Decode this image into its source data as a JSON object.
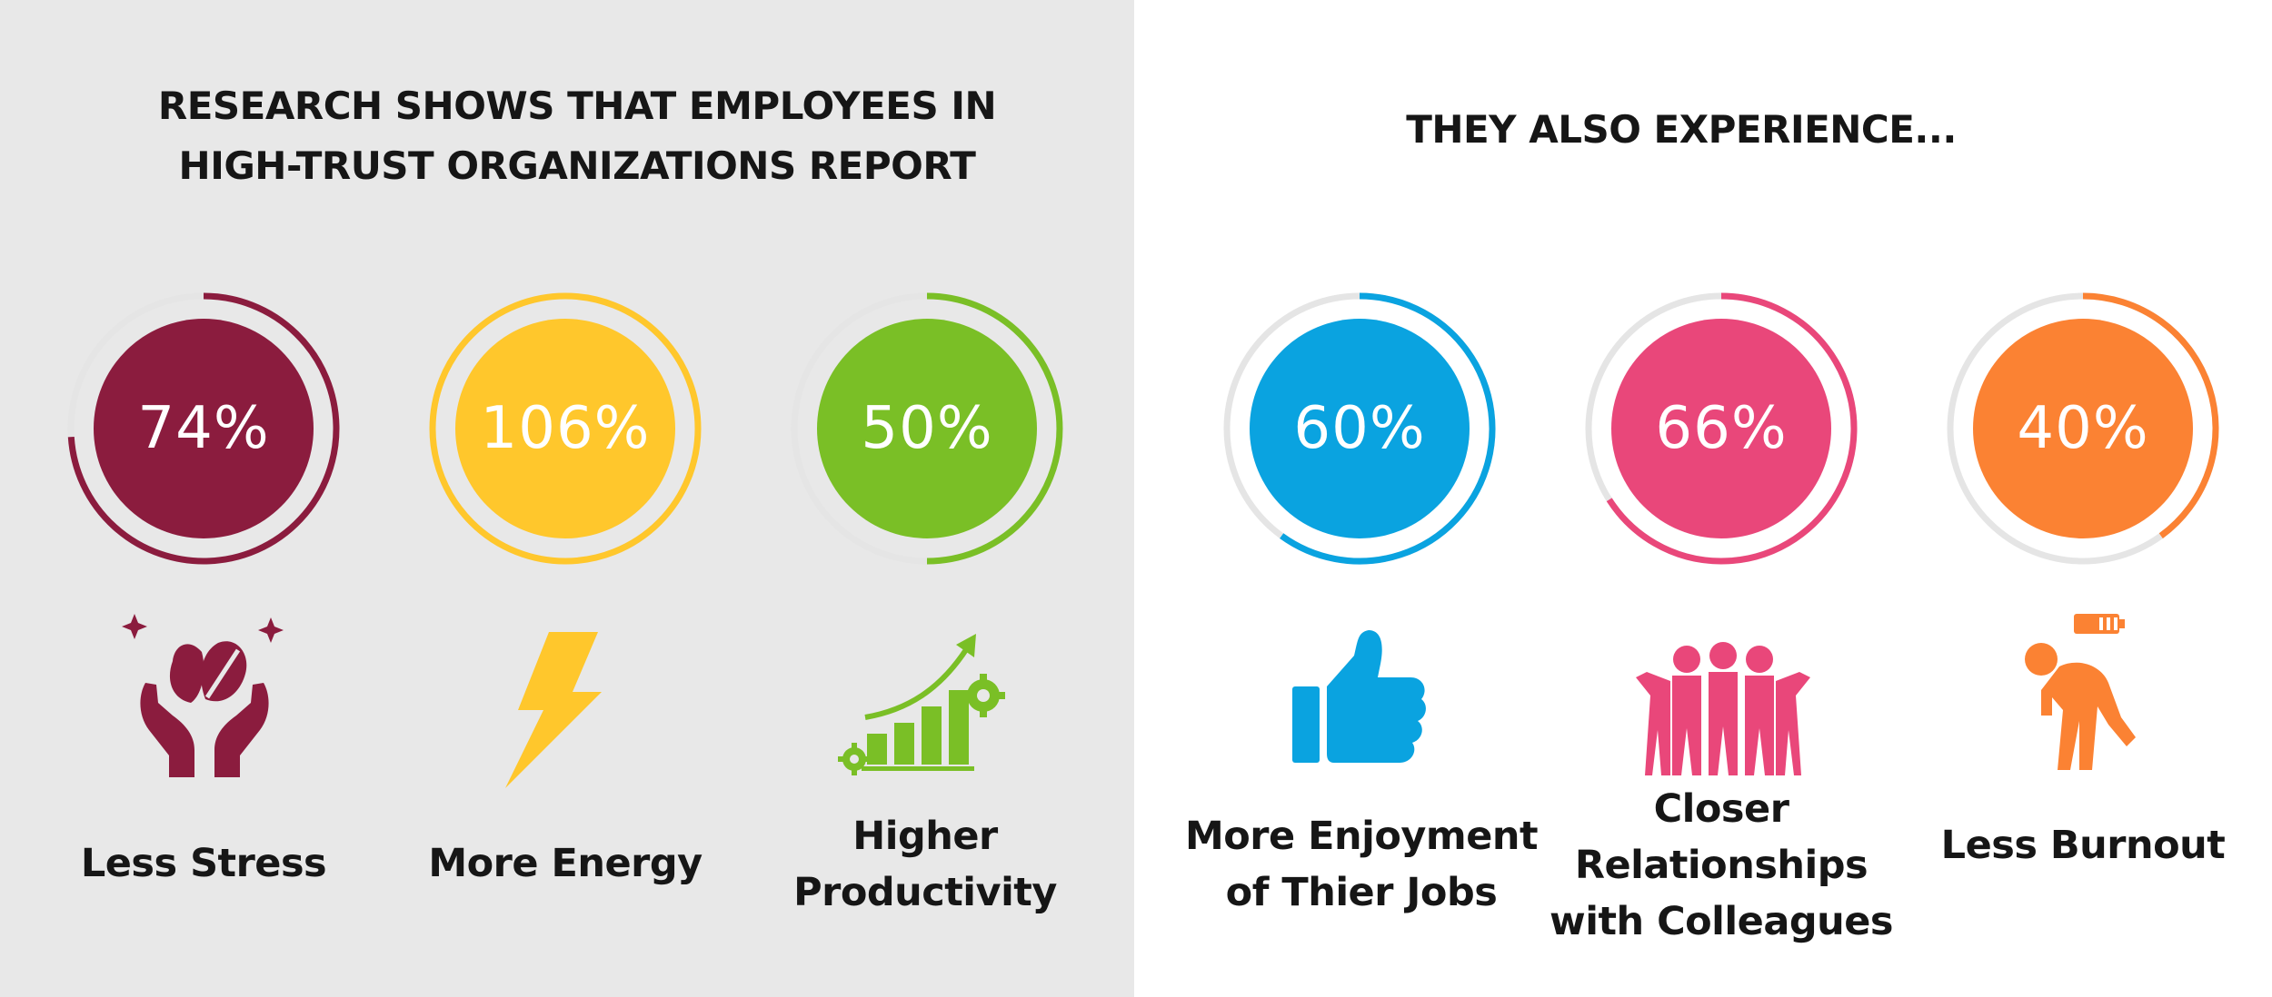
{
  "left": {
    "heading": [
      "RESEARCH SHOWS THAT EMPLOYEES IN",
      "HIGH-TRUST ORGANIZATIONS REPORT"
    ],
    "stats": [
      {
        "value": "74%",
        "fraction": 0.74,
        "color": "#8b1c3e",
        "icon": "hands-leaf-icon",
        "label": [
          "Less Stress"
        ]
      },
      {
        "value": "106%",
        "fraction": 1.0,
        "color": "#ffc72c",
        "icon": "lightning-bolt-icon",
        "label": [
          "More Energy"
        ]
      },
      {
        "value": "50%",
        "fraction": 0.5,
        "color": "#7abf26",
        "icon": "growth-chart-icon",
        "label": [
          "Higher",
          "Productivity"
        ]
      }
    ]
  },
  "right": {
    "heading": [
      "THEY ALSO EXPERIENCE..."
    ],
    "stats": [
      {
        "value": "60%",
        "fraction": 0.6,
        "color": "#0aa3e0",
        "icon": "thumbs-up-icon",
        "label": [
          "More Enjoyment",
          "of Thier Jobs"
        ]
      },
      {
        "value": "66%",
        "fraction": 0.66,
        "color": "#e9477a",
        "icon": "group-people-icon",
        "label": [
          "Closer",
          "Relationships",
          "with Colleagues"
        ]
      },
      {
        "value": "40%",
        "fraction": 0.4,
        "color": "#fb8233",
        "icon": "tired-person-icon",
        "label": [
          "Less Burnout"
        ]
      }
    ]
  },
  "colors": {
    "track": "#e5e5e5",
    "left_background": "#e8e8e8",
    "text": "#161616"
  }
}
